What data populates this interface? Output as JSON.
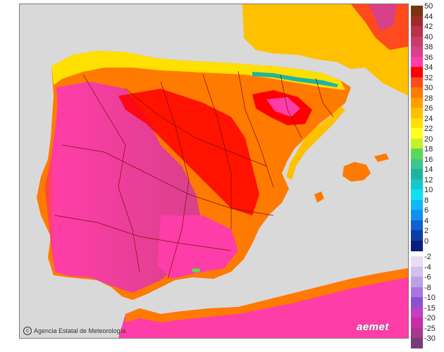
{
  "map": {
    "credit": "Agencia Estatal de Meteorología",
    "credit_icon": "copyright-icon",
    "brand": "aemet",
    "sea_color": "#d9d9d9",
    "border_color": "#7a1010"
  },
  "legend": {
    "warm": [
      {
        "label": "50",
        "color": "#7a3410"
      },
      {
        "label": "44",
        "color": "#9e2a2a"
      },
      {
        "label": "42",
        "color": "#b8324a"
      },
      {
        "label": "40",
        "color": "#c83c6a"
      },
      {
        "label": "38",
        "color": "#d8408a"
      },
      {
        "label": "36",
        "color": "#ff3da8"
      },
      {
        "label": "34",
        "color": "#ff0000"
      },
      {
        "label": "32",
        "color": "#ff4a1e"
      },
      {
        "label": "30",
        "color": "#ff7a00"
      },
      {
        "label": "28",
        "color": "#ff9e00"
      },
      {
        "label": "26",
        "color": "#ffc000"
      },
      {
        "label": "24",
        "color": "#ffe000"
      },
      {
        "label": "22",
        "color": "#ffff20"
      },
      {
        "label": "20",
        "color": "#c8f028"
      },
      {
        "label": "18",
        "color": "#5ad85a"
      },
      {
        "label": "16",
        "color": "#3cc88c"
      },
      {
        "label": "14",
        "color": "#20b4a0"
      },
      {
        "label": "12",
        "color": "#14c8d0"
      },
      {
        "label": "10",
        "color": "#10e0f0"
      },
      {
        "label": "8",
        "color": "#10b8f8"
      },
      {
        "label": "6",
        "color": "#1090f0"
      },
      {
        "label": "4",
        "color": "#1060d0"
      },
      {
        "label": "2",
        "color": "#0c3ca8"
      },
      {
        "label": "0",
        "color": "#0a1e80"
      }
    ],
    "cold": [
      {
        "label": "-2",
        "color": "#e8dcf4"
      },
      {
        "label": "-4",
        "color": "#d4c0ec"
      },
      {
        "label": "-6",
        "color": "#c0a0e4"
      },
      {
        "label": "-8",
        "color": "#a878e0"
      },
      {
        "label": "-10",
        "color": "#8c50d8"
      },
      {
        "label": "-15",
        "color": "#c040c0"
      },
      {
        "label": "-20",
        "color": "#c82ca8"
      },
      {
        "label": "-25",
        "color": "#a8388c"
      },
      {
        "label": "-30",
        "color": "#7a3c78"
      }
    ]
  }
}
